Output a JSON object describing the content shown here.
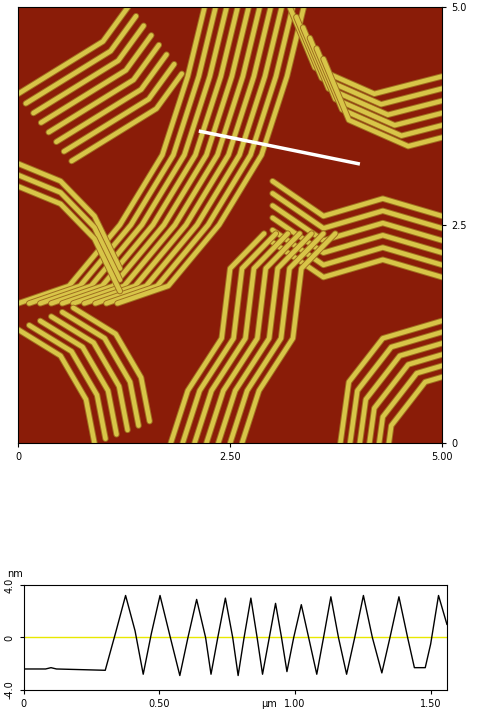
{
  "chart_data": [
    {
      "type": "image",
      "xlim": [
        0,
        5
      ],
      "ylim": [
        0,
        5
      ],
      "xticks": [
        0,
        {
          "value": 2.5,
          "label": "2.50"
        },
        {
          "value": 5,
          "label": "5.00"
        }
      ],
      "yticks": [
        0,
        {
          "value": 2.5,
          "label": "2.5"
        },
        {
          "value": 5,
          "label": "5.0"
        }
      ],
      "color": "#d8c548",
      "stripe_families": [
        {
          "path": [
            [
              0.0,
              4.0
            ],
            [
              0.5,
              4.3
            ],
            [
              1.0,
              4.6
            ],
            [
              1.3,
              5.0
            ]
          ],
          "shift": [
            0.09,
            -0.11
          ],
          "copies": 8
        },
        {
          "path": [
            [
              2.2,
              5.0
            ],
            [
              2.0,
              4.2
            ],
            [
              1.7,
              3.3
            ],
            [
              1.2,
              2.5
            ],
            [
              0.6,
              1.8
            ],
            [
              0.0,
              1.6
            ]
          ],
          "shift": [
            0.13,
            0.0
          ],
          "copies": 10
        },
        {
          "path": [
            [
              3.2,
              5.0
            ],
            [
              3.5,
              4.3
            ],
            [
              4.2,
              4.0
            ],
            [
              5.0,
              4.2
            ]
          ],
          "shift": [
            0.08,
            -0.12
          ],
          "copies": 6
        },
        {
          "path": [
            [
              3.0,
              3.0
            ],
            [
              3.6,
              2.6
            ],
            [
              4.3,
              2.8
            ],
            [
              5.0,
              2.6
            ]
          ],
          "shift": [
            0.0,
            -0.14
          ],
          "copies": 6
        },
        {
          "path": [
            [
              0.0,
              1.3
            ],
            [
              0.5,
              1.0
            ],
            [
              0.8,
              0.5
            ],
            [
              0.9,
              0.0
            ]
          ],
          "shift": [
            0.13,
            0.05
          ],
          "copies": 6
        },
        {
          "path": [
            [
              1.8,
              0.0
            ],
            [
              2.0,
              0.6
            ],
            [
              2.4,
              1.2
            ],
            [
              2.5,
              2.0
            ],
            [
              2.9,
              2.4
            ]
          ],
          "shift": [
            0.14,
            0.0
          ],
          "copies": 7
        },
        {
          "path": [
            [
              3.8,
              0.0
            ],
            [
              3.9,
              0.7
            ],
            [
              4.3,
              1.2
            ],
            [
              5.0,
              1.4
            ]
          ],
          "shift": [
            0.1,
            -0.1
          ],
          "copies": 6
        },
        {
          "path": [
            [
              0.0,
              3.2
            ],
            [
              0.5,
              3.0
            ],
            [
              0.9,
              2.6
            ],
            [
              1.2,
              2.0
            ]
          ],
          "shift": [
            0.0,
            -0.13
          ],
          "copies": 3
        }
      ],
      "profile_line": [
        [
          2.15,
          3.57
        ],
        [
          4.01,
          3.2
        ]
      ]
    },
    {
      "type": "line",
      "x": [
        0,
        0.08,
        0.1,
        0.12,
        0.3,
        0.34,
        0.375,
        0.41,
        0.44,
        0.47,
        0.502,
        0.54,
        0.575,
        0.605,
        0.637,
        0.67,
        0.69,
        0.715,
        0.743,
        0.77,
        0.79,
        0.812,
        0.837,
        0.86,
        0.88,
        0.905,
        0.928,
        0.95,
        0.97,
        0.995,
        1.023,
        1.05,
        1.08,
        1.105,
        1.132,
        1.16,
        1.19,
        1.22,
        1.252,
        1.285,
        1.32,
        1.35,
        1.383,
        1.415,
        1.44,
        1.48,
        1.5,
        1.529,
        1.56
      ],
      "values": [
        -2.4,
        -2.4,
        -2.3,
        -2.4,
        -2.5,
        0.5,
        3.2,
        0.5,
        -2.8,
        0.3,
        3.2,
        0.0,
        -2.9,
        0.0,
        2.9,
        0.0,
        -2.8,
        0.0,
        3.0,
        0.0,
        -2.9,
        0.0,
        3.0,
        0.0,
        -2.8,
        0.0,
        2.6,
        0.0,
        -2.6,
        0.0,
        2.5,
        0.0,
        -2.8,
        0.0,
        3.1,
        0.0,
        -2.8,
        0.0,
        3.2,
        0.0,
        -2.7,
        0.0,
        3.1,
        0.0,
        -2.3,
        -2.3,
        -0.5,
        3.2,
        1.0
      ],
      "color": "#000000",
      "xlim": [
        0,
        1.56
      ],
      "ylim": [
        -4,
        4
      ],
      "xticks": [
        0,
        {
          "value": 0.5,
          "label": "0.50"
        },
        {
          "value": 1.0,
          "label": "1.00"
        },
        {
          "value": 1.5,
          "label": "1.50"
        }
      ],
      "yticks": [
        {
          "value": -4,
          "label": "-4.0"
        },
        0,
        {
          "value": 4,
          "label": "4.0"
        }
      ],
      "x_label": "µm",
      "y_label": "nm",
      "reference_line": 0
    }
  ]
}
